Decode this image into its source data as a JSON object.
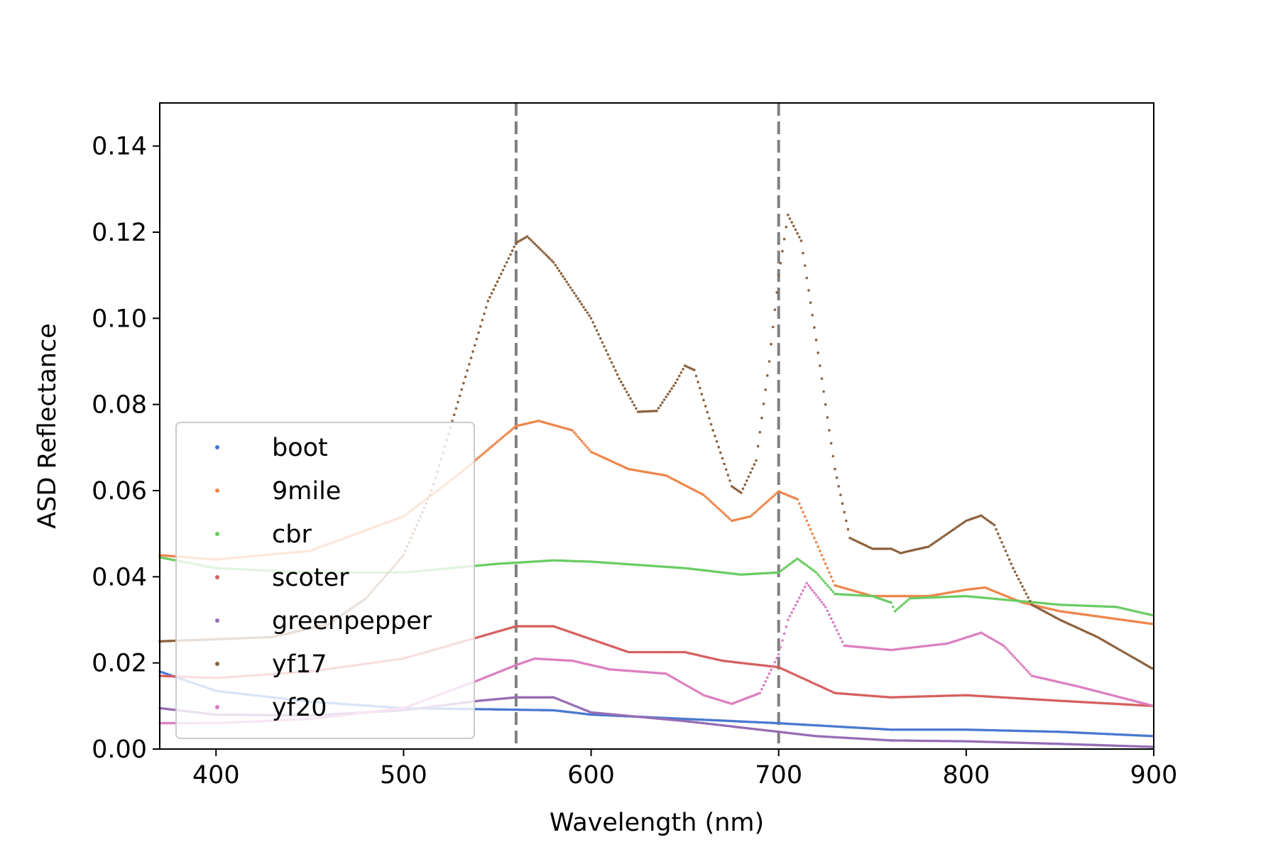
{
  "chart_data": {
    "type": "scatter",
    "xlabel": "Wavelength (nm)",
    "ylabel": "ASD Reflectance",
    "xlim": [
      370,
      900
    ],
    "ylim": [
      0,
      0.15
    ],
    "xticks": [
      "400",
      "500",
      "600",
      "700",
      "800",
      "900"
    ],
    "yticks": [
      "0.00",
      "0.02",
      "0.04",
      "0.06",
      "0.08",
      "0.10",
      "0.12",
      "0.14"
    ],
    "vlines": [
      560,
      700
    ],
    "vline_style": "dashed",
    "vline_color": "#808080",
    "legend_position": "lower-left",
    "series": [
      {
        "name": "boot",
        "color": "#4878d0",
        "points": [
          [
            370,
            0.018
          ],
          [
            400,
            0.0135
          ],
          [
            450,
            0.011
          ],
          [
            500,
            0.0095
          ],
          [
            550,
            0.0092
          ],
          [
            580,
            0.009
          ],
          [
            600,
            0.008
          ],
          [
            650,
            0.007
          ],
          [
            700,
            0.006
          ],
          [
            720,
            0.0055
          ],
          [
            760,
            0.0045
          ],
          [
            800,
            0.0045
          ],
          [
            850,
            0.004
          ],
          [
            900,
            0.003
          ]
        ]
      },
      {
        "name": "9mile",
        "color": "#ee854a",
        "points": [
          [
            370,
            0.045
          ],
          [
            400,
            0.044
          ],
          [
            450,
            0.046
          ],
          [
            500,
            0.054
          ],
          [
            530,
            0.064
          ],
          [
            560,
            0.075
          ],
          [
            572,
            0.0762
          ],
          [
            590,
            0.074
          ],
          [
            600,
            0.069
          ],
          [
            620,
            0.065
          ],
          [
            640,
            0.0635
          ],
          [
            660,
            0.059
          ],
          [
            675,
            0.053
          ],
          [
            685,
            0.054
          ],
          [
            700,
            0.0598
          ],
          [
            710,
            0.058
          ],
          [
            720,
            0.048
          ],
          [
            730,
            0.038
          ],
          [
            750,
            0.0355
          ],
          [
            780,
            0.0355
          ],
          [
            800,
            0.037
          ],
          [
            810,
            0.0375
          ],
          [
            830,
            0.034
          ],
          [
            850,
            0.032
          ],
          [
            900,
            0.029
          ]
        ]
      },
      {
        "name": "cbr",
        "color": "#6acc64",
        "points": [
          [
            370,
            0.0445
          ],
          [
            400,
            0.042
          ],
          [
            450,
            0.041
          ],
          [
            500,
            0.041
          ],
          [
            550,
            0.043
          ],
          [
            580,
            0.0438
          ],
          [
            600,
            0.0435
          ],
          [
            650,
            0.042
          ],
          [
            680,
            0.0405
          ],
          [
            700,
            0.041
          ],
          [
            710,
            0.0442
          ],
          [
            720,
            0.041
          ],
          [
            730,
            0.036
          ],
          [
            750,
            0.0355
          ],
          [
            760,
            0.034
          ],
          [
            762,
            0.032
          ],
          [
            770,
            0.035
          ],
          [
            800,
            0.0355
          ],
          [
            850,
            0.0335
          ],
          [
            880,
            0.033
          ],
          [
            900,
            0.031
          ]
        ]
      },
      {
        "name": "scoter",
        "color": "#d65f5f",
        "points": [
          [
            370,
            0.017
          ],
          [
            400,
            0.0165
          ],
          [
            450,
            0.018
          ],
          [
            500,
            0.021
          ],
          [
            540,
            0.026
          ],
          [
            560,
            0.0285
          ],
          [
            580,
            0.0285
          ],
          [
            600,
            0.0255
          ],
          [
            620,
            0.0225
          ],
          [
            650,
            0.0225
          ],
          [
            670,
            0.0205
          ],
          [
            700,
            0.019
          ],
          [
            710,
            0.017
          ],
          [
            730,
            0.013
          ],
          [
            760,
            0.012
          ],
          [
            800,
            0.0125
          ],
          [
            850,
            0.0112
          ],
          [
            900,
            0.01
          ]
        ]
      },
      {
        "name": "greenpepper",
        "color": "#956cb4",
        "points": [
          [
            370,
            0.0095
          ],
          [
            400,
            0.008
          ],
          [
            450,
            0.0078
          ],
          [
            500,
            0.009
          ],
          [
            540,
            0.0112
          ],
          [
            560,
            0.012
          ],
          [
            580,
            0.012
          ],
          [
            600,
            0.0085
          ],
          [
            650,
            0.0065
          ],
          [
            700,
            0.004
          ],
          [
            720,
            0.003
          ],
          [
            760,
            0.002
          ],
          [
            800,
            0.0018
          ],
          [
            850,
            0.0012
          ],
          [
            900,
            0.0005
          ]
        ]
      },
      {
        "name": "yf17",
        "color": "#8c613c",
        "points": [
          [
            370,
            0.025
          ],
          [
            400,
            0.0255
          ],
          [
            430,
            0.026
          ],
          [
            460,
            0.029
          ],
          [
            480,
            0.035
          ],
          [
            500,
            0.045
          ],
          [
            515,
            0.06
          ],
          [
            530,
            0.082
          ],
          [
            545,
            0.104
          ],
          [
            560,
            0.1175
          ],
          [
            566,
            0.119
          ],
          [
            580,
            0.113
          ],
          [
            600,
            0.1
          ],
          [
            615,
            0.086
          ],
          [
            625,
            0.0783
          ],
          [
            635,
            0.0785
          ],
          [
            645,
            0.085
          ],
          [
            650,
            0.089
          ],
          [
            655,
            0.088
          ],
          [
            665,
            0.074
          ],
          [
            675,
            0.061
          ],
          [
            680,
            0.0595
          ],
          [
            688,
            0.067
          ],
          [
            695,
            0.09
          ],
          [
            700,
            0.11
          ],
          [
            705,
            0.124
          ],
          [
            712,
            0.118
          ],
          [
            720,
            0.095
          ],
          [
            730,
            0.065
          ],
          [
            738,
            0.049
          ],
          [
            750,
            0.0465
          ],
          [
            760,
            0.0465
          ],
          [
            765,
            0.0455
          ],
          [
            780,
            0.047
          ],
          [
            800,
            0.053
          ],
          [
            808,
            0.0542
          ],
          [
            815,
            0.052
          ],
          [
            825,
            0.042
          ],
          [
            835,
            0.0335
          ],
          [
            850,
            0.03
          ],
          [
            870,
            0.026
          ],
          [
            900,
            0.0185
          ]
        ]
      },
      {
        "name": "yf20",
        "color": "#dc7ec0",
        "points": [
          [
            370,
            0.006
          ],
          [
            400,
            0.006
          ],
          [
            450,
            0.007
          ],
          [
            500,
            0.0095
          ],
          [
            540,
            0.016
          ],
          [
            560,
            0.0195
          ],
          [
            570,
            0.021
          ],
          [
            590,
            0.0205
          ],
          [
            610,
            0.0185
          ],
          [
            640,
            0.0175
          ],
          [
            660,
            0.0125
          ],
          [
            675,
            0.0105
          ],
          [
            690,
            0.013
          ],
          [
            700,
            0.022
          ],
          [
            705,
            0.03
          ],
          [
            715,
            0.0385
          ],
          [
            725,
            0.033
          ],
          [
            735,
            0.024
          ],
          [
            760,
            0.023
          ],
          [
            790,
            0.0245
          ],
          [
            808,
            0.027
          ],
          [
            820,
            0.024
          ],
          [
            835,
            0.017
          ],
          [
            860,
            0.0145
          ],
          [
            900,
            0.01
          ]
        ]
      }
    ]
  }
}
